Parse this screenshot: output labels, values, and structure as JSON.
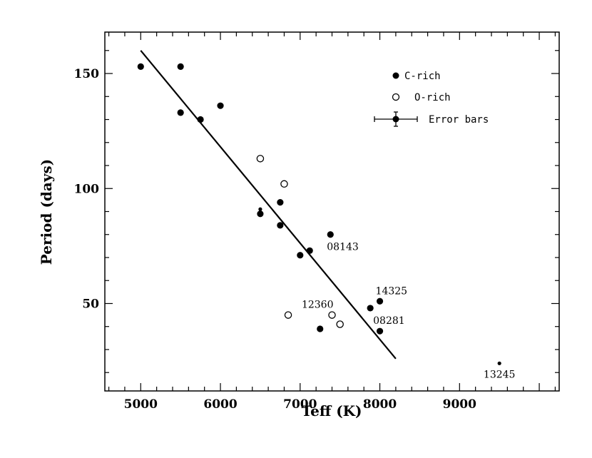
{
  "chart_data": {
    "type": "scatter",
    "title": "",
    "xlabel": "Teff (K)",
    "ylabel": "Period (days)",
    "xlim": [
      4550,
      10250
    ],
    "ylim": [
      12,
      168
    ],
    "x_ticks": [
      5000,
      6000,
      7000,
      8000,
      9000
    ],
    "y_ticks": [
      50,
      100,
      150
    ],
    "grid": false,
    "legend_position": "top-right",
    "legend": [
      {
        "label": "C-rich",
        "marker": "filled-circle"
      },
      {
        "label": "O-rich",
        "marker": "open-circle"
      },
      {
        "label": "Error bars",
        "marker": "filled-circle-errorbar"
      }
    ],
    "series": [
      {
        "name": "C-rich",
        "marker": "filled",
        "points": [
          {
            "x": 5000,
            "y": 153
          },
          {
            "x": 5500,
            "y": 153
          },
          {
            "x": 5500,
            "y": 133
          },
          {
            "x": 5750,
            "y": 130
          },
          {
            "x": 6000,
            "y": 136
          },
          {
            "x": 6500,
            "y": 89
          },
          {
            "x": 6750,
            "y": 94
          },
          {
            "x": 6750,
            "y": 84
          },
          {
            "x": 7000,
            "y": 71
          },
          {
            "x": 7120,
            "y": 73
          },
          {
            "x": 7250,
            "y": 39
          },
          {
            "x": 7380,
            "y": 80
          },
          {
            "x": 7880,
            "y": 48
          },
          {
            "x": 8000,
            "y": 51
          },
          {
            "x": 8000,
            "y": 38
          }
        ]
      },
      {
        "name": "O-rich",
        "marker": "open",
        "points": [
          {
            "x": 6500,
            "y": 113
          },
          {
            "x": 6800,
            "y": 102
          },
          {
            "x": 6850,
            "y": 45
          },
          {
            "x": 7400,
            "y": 45
          },
          {
            "x": 7500,
            "y": 41
          }
        ]
      },
      {
        "marker": "small-dot",
        "points": [
          {
            "x": 6500,
            "y": 91
          },
          {
            "x": 9500,
            "y": 24
          }
        ]
      }
    ],
    "fit_line": {
      "x": [
        5000,
        8200
      ],
      "y": [
        160,
        26
      ]
    },
    "annotations": [
      {
        "text": "08143",
        "x": 7380,
        "y": 80
      },
      {
        "text": "14325",
        "x": 8000,
        "y": 51
      },
      {
        "text": "12360",
        "x": 7400,
        "y": 45
      },
      {
        "text": "08281",
        "x": 7880,
        "y": 48
      },
      {
        "text": "13245",
        "x": 9500,
        "y": 24
      }
    ],
    "legend_errorbar_x": [
      7815,
      8245
    ],
    "legend_errorbar_y": [
      130,
      137
    ]
  }
}
